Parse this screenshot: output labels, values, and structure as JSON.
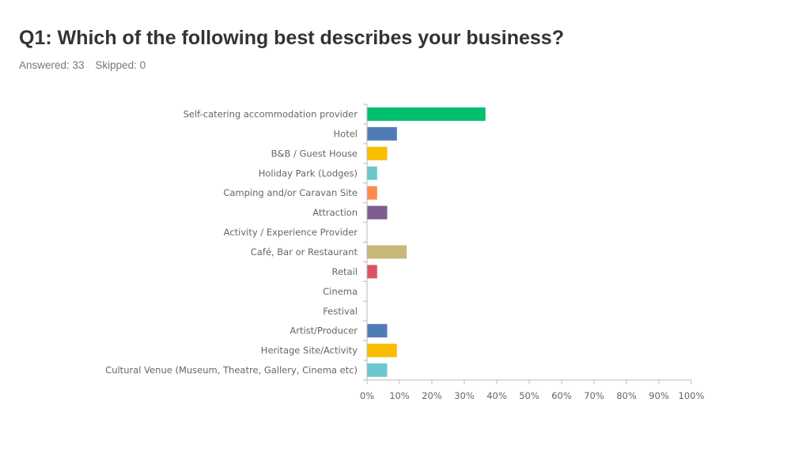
{
  "header": {
    "title": "Q1: Which of the following best describes your business?",
    "answered": "Answered: 33",
    "skipped": "Skipped: 0"
  },
  "chart_data": {
    "type": "bar",
    "orientation": "horizontal",
    "title": "",
    "xlabel": "",
    "ylabel": "",
    "xlim": [
      0,
      100
    ],
    "x_ticks": [
      "0%",
      "10%",
      "20%",
      "30%",
      "40%",
      "50%",
      "60%",
      "70%",
      "80%",
      "90%",
      "100%"
    ],
    "categories": [
      "Self-catering accommodation provider",
      "Hotel",
      "B&B / Guest House",
      "Holiday Park (Lodges)",
      "Camping and/or Caravan Site",
      "Attraction",
      "Activity / Experience Provider",
      "Café, Bar or Restaurant",
      "Retail",
      "Cinema",
      "Festival",
      "Artist/Producer",
      "Heritage Site/Activity",
      "Cultural Venue (Museum, Theatre, Gallery, Cinema etc)"
    ],
    "values": [
      36.4,
      9.1,
      6.1,
      3.0,
      3.0,
      6.1,
      0,
      12.1,
      3.0,
      0,
      0,
      6.1,
      9.1,
      6.1
    ],
    "colors": [
      "#00bf6f",
      "#507cb6",
      "#f9be00",
      "#6bc8cd",
      "#ff8b4f",
      "#7d5e90",
      "#d25f90",
      "#c7b879",
      "#dd5360",
      "#a3d978",
      "#888888",
      "#507cb6",
      "#f9be00",
      "#6bc8cd"
    ],
    "grid": false,
    "legend": "none"
  }
}
